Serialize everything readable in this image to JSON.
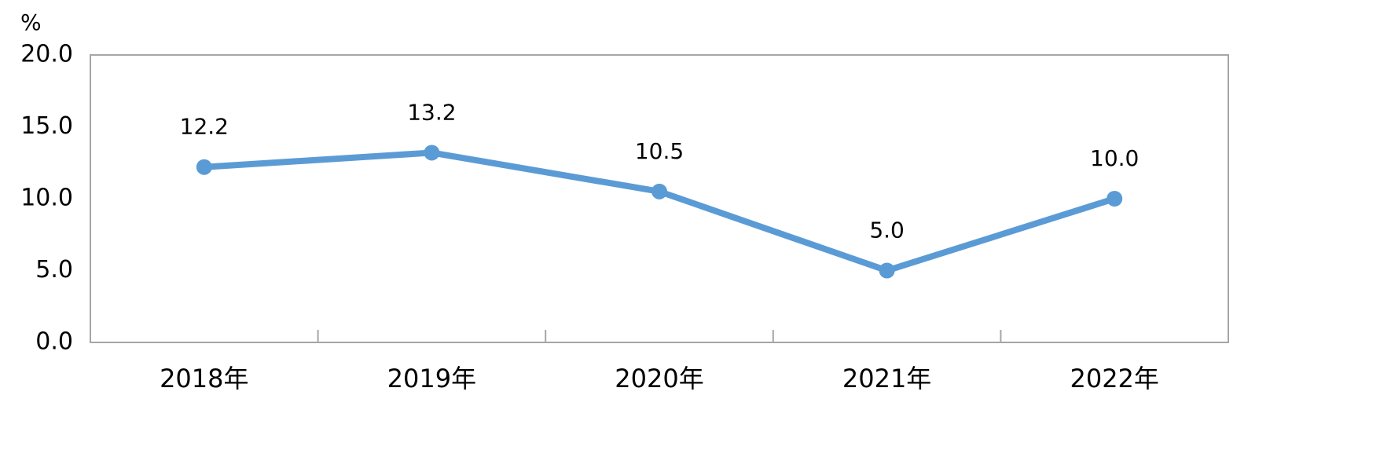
{
  "chart_data": {
    "type": "line",
    "y_label": "%",
    "categories": [
      "2018年",
      "2019年",
      "2020年",
      "2021年",
      "2022年"
    ],
    "values": [
      12.2,
      13.2,
      10.5,
      5,
      10
    ],
    "value_labels": [
      "12.2",
      "13.2",
      "10.5",
      "5.0",
      "10.0"
    ],
    "color": "#5b9bd5",
    "ylim": [
      0,
      20
    ],
    "yticks": [
      {
        "value": 0,
        "label": "0.0"
      },
      {
        "value": 5,
        "label": "5.0"
      },
      {
        "value": 10,
        "label": "10.0"
      },
      {
        "value": 15,
        "label": "15.0"
      },
      {
        "value": 20,
        "label": "20.0"
      }
    ],
    "grid": false
  }
}
